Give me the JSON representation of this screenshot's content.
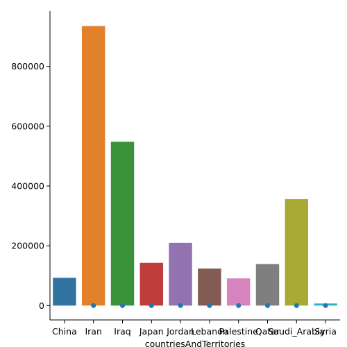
{
  "chart_data": {
    "type": "bar",
    "title": "",
    "xlabel": "countriesAndTerritories",
    "ylabel": "",
    "categories": [
      "China",
      "Iran",
      "Iraq",
      "Japan",
      "Jordan",
      "Lebanon",
      "Palestine",
      "Qatar",
      "Saudi_Arabia",
      "Syria"
    ],
    "values": [
      93000,
      935000,
      548000,
      143000,
      210000,
      124000,
      91000,
      139000,
      356000,
      7000
    ],
    "markers": [
      null,
      0,
      0,
      0,
      0,
      0,
      0,
      0,
      0,
      0
    ],
    "colors": [
      "#3274a1",
      "#e1812c",
      "#3a923a",
      "#c03d3e",
      "#9372b2",
      "#845b53",
      "#d684bd",
      "#7f7f7f",
      "#a9aa35",
      "#2eb3c2"
    ],
    "marker_color": "#1f77b4",
    "ylim": [
      -48000,
      985000
    ],
    "yticks": [
      0,
      200000,
      400000,
      600000,
      800000
    ],
    "ytick_labels": [
      "0",
      "200000",
      "400000",
      "600000",
      "800000"
    ],
    "grid": false,
    "legend": "none"
  }
}
